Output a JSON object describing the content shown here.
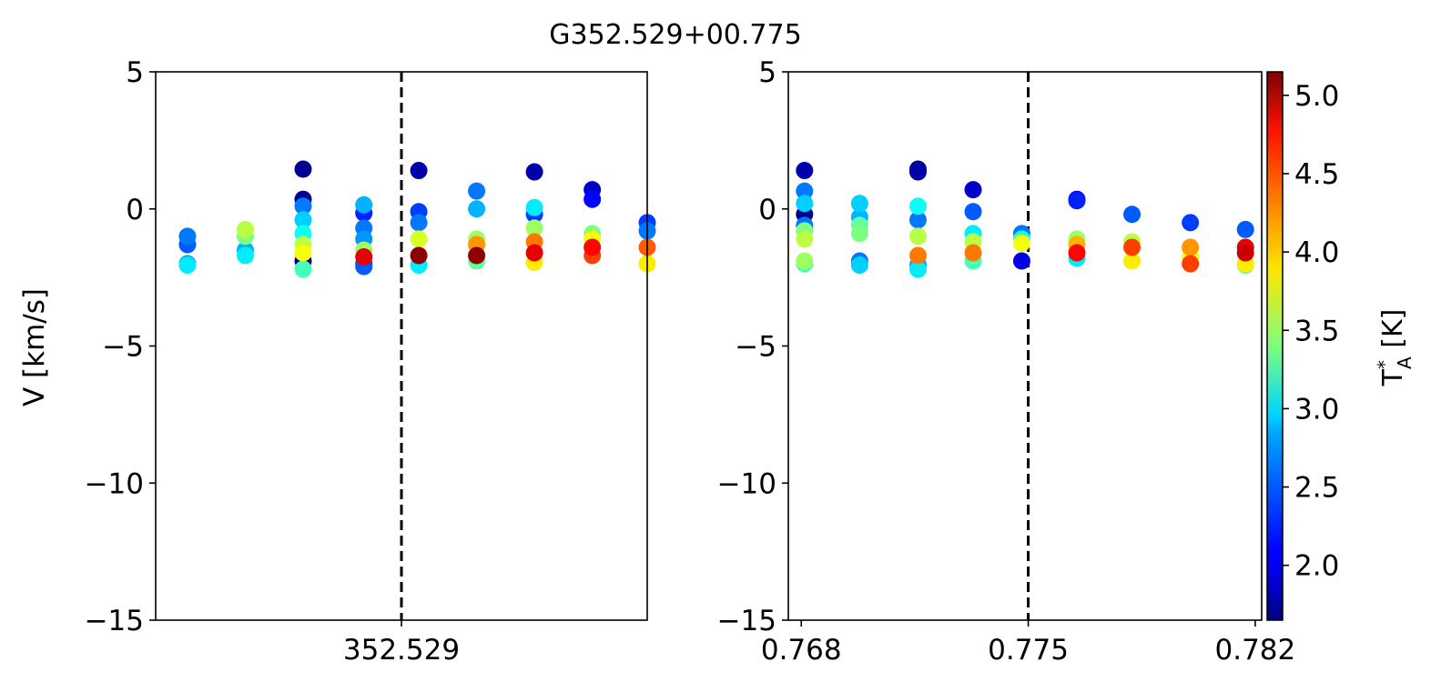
{
  "figure": {
    "title": "G352.529+00.775"
  },
  "chart_data": [
    {
      "type": "scatter",
      "panel": "left",
      "xlabel": "",
      "ylabel": "V [km/s]",
      "xlim": [
        352.5205,
        352.5375
      ],
      "ylim": [
        -15,
        5
      ],
      "xticks": [
        {
          "value": 352.529,
          "label": "352.529"
        }
      ],
      "yticks": [
        {
          "value": 5,
          "label": "5"
        },
        {
          "value": 0,
          "label": "0"
        },
        {
          "value": -5,
          "label": "−5"
        },
        {
          "value": -10,
          "label": "−10"
        },
        {
          "value": -15,
          "label": "−15"
        }
      ],
      "vline": 352.529,
      "color_encodes": "T_A^* [K]",
      "points": [
        {
          "x": 352.5216,
          "y": -1.0,
          "t": 2.5
        },
        {
          "x": 352.5216,
          "y": -1.3,
          "t": 2.4
        },
        {
          "x": 352.5216,
          "y": -2.0,
          "t": 2.6
        },
        {
          "x": 352.5216,
          "y": -2.05,
          "t": 2.9
        },
        {
          "x": 352.5236,
          "y": -0.75,
          "t": 3.6
        },
        {
          "x": 352.5236,
          "y": -1.0,
          "t": 3.4
        },
        {
          "x": 352.5236,
          "y": -1.5,
          "t": 2.7
        },
        {
          "x": 352.5236,
          "y": -1.7,
          "t": 2.9
        },
        {
          "x": 352.5256,
          "y": 1.45,
          "t": 1.7
        },
        {
          "x": 352.5256,
          "y": 0.35,
          "t": 1.7
        },
        {
          "x": 352.5256,
          "y": 0.1,
          "t": 2.5
        },
        {
          "x": 352.5256,
          "y": -0.4,
          "t": 2.8
        },
        {
          "x": 352.5256,
          "y": -0.9,
          "t": 3.0
        },
        {
          "x": 352.5256,
          "y": -1.3,
          "t": 3.6
        },
        {
          "x": 352.5256,
          "y": -1.6,
          "t": 3.8
        },
        {
          "x": 352.5256,
          "y": -1.9,
          "t": 1.7
        },
        {
          "x": 352.5256,
          "y": -2.2,
          "t": 3.2
        },
        {
          "x": 352.5277,
          "y": 0.15,
          "t": 2.7
        },
        {
          "x": 352.5277,
          "y": -0.15,
          "t": 2.2
        },
        {
          "x": 352.5277,
          "y": -0.7,
          "t": 2.5
        },
        {
          "x": 352.5277,
          "y": -1.1,
          "t": 2.6
        },
        {
          "x": 352.5277,
          "y": -1.5,
          "t": 3.5
        },
        {
          "x": 352.5277,
          "y": -1.75,
          "t": 4.8
        },
        {
          "x": 352.5277,
          "y": -2.0,
          "t": 2.2
        },
        {
          "x": 352.5277,
          "y": -2.1,
          "t": 2.4
        },
        {
          "x": 352.5296,
          "y": 1.4,
          "t": 1.8
        },
        {
          "x": 352.5296,
          "y": -0.1,
          "t": 2.3
        },
        {
          "x": 352.5296,
          "y": -0.5,
          "t": 2.5
        },
        {
          "x": 352.5296,
          "y": -1.1,
          "t": 3.7
        },
        {
          "x": 352.5296,
          "y": -1.7,
          "t": 5.1
        },
        {
          "x": 352.5296,
          "y": -2.05,
          "t": 2.9
        },
        {
          "x": 352.5316,
          "y": 0.65,
          "t": 2.5
        },
        {
          "x": 352.5316,
          "y": 0.0,
          "t": 2.7
        },
        {
          "x": 352.5316,
          "y": -1.1,
          "t": 3.5
        },
        {
          "x": 352.5316,
          "y": -1.3,
          "t": 4.2
        },
        {
          "x": 352.5316,
          "y": -1.7,
          "t": 5.1
        },
        {
          "x": 352.5316,
          "y": -1.9,
          "t": 3.3
        },
        {
          "x": 352.5336,
          "y": 1.35,
          "t": 1.8
        },
        {
          "x": 352.5336,
          "y": 0.05,
          "t": 2.9
        },
        {
          "x": 352.5336,
          "y": -0.2,
          "t": 2.3
        },
        {
          "x": 352.5336,
          "y": -0.7,
          "t": 3.5
        },
        {
          "x": 352.5336,
          "y": -1.2,
          "t": 4.3
        },
        {
          "x": 352.5336,
          "y": -1.6,
          "t": 4.8
        },
        {
          "x": 352.5336,
          "y": -1.95,
          "t": 3.9
        },
        {
          "x": 352.5356,
          "y": 0.7,
          "t": 1.9
        },
        {
          "x": 352.5356,
          "y": 0.35,
          "t": 2.1
        },
        {
          "x": 352.5356,
          "y": -0.9,
          "t": 3.4
        },
        {
          "x": 352.5356,
          "y": -1.1,
          "t": 3.8
        },
        {
          "x": 352.5356,
          "y": -1.4,
          "t": 4.7
        },
        {
          "x": 352.5356,
          "y": -1.7,
          "t": 4.5
        },
        {
          "x": 352.5375,
          "y": -0.5,
          "t": 2.3
        },
        {
          "x": 352.5375,
          "y": -0.8,
          "t": 2.5
        },
        {
          "x": 352.5375,
          "y": -1.4,
          "t": 4.4
        },
        {
          "x": 352.5375,
          "y": -2.0,
          "t": 3.9
        }
      ]
    },
    {
      "type": "scatter",
      "panel": "right",
      "xlabel": "",
      "ylabel": "",
      "xlim": [
        0.7676,
        0.7822
      ],
      "ylim": [
        -15,
        5
      ],
      "xticks": [
        {
          "value": 0.768,
          "label": "0.768"
        },
        {
          "value": 0.775,
          "label": "0.775"
        },
        {
          "value": 0.782,
          "label": "0.782"
        }
      ],
      "yticks": [
        {
          "value": 5,
          "label": "5"
        },
        {
          "value": 0,
          "label": "0"
        },
        {
          "value": -5,
          "label": "−5"
        },
        {
          "value": -10,
          "label": "−10"
        },
        {
          "value": -15,
          "label": "−15"
        }
      ],
      "vline": 0.775,
      "color_encodes": "T_A^* [K]",
      "points": [
        {
          "x": 0.7681,
          "y": 1.4,
          "t": 1.8
        },
        {
          "x": 0.7681,
          "y": 0.65,
          "t": 2.5
        },
        {
          "x": 0.7681,
          "y": 0.2,
          "t": 2.8
        },
        {
          "x": 0.7681,
          "y": -0.2,
          "t": 1.7
        },
        {
          "x": 0.7681,
          "y": -0.6,
          "t": 2.5
        },
        {
          "x": 0.7681,
          "y": -0.8,
          "t": 3.4
        },
        {
          "x": 0.7681,
          "y": -1.1,
          "t": 3.6
        },
        {
          "x": 0.7681,
          "y": -1.9,
          "t": 3.5
        },
        {
          "x": 0.7681,
          "y": -2.0,
          "t": 3.2
        },
        {
          "x": 0.7698,
          "y": 0.2,
          "t": 2.8
        },
        {
          "x": 0.7698,
          "y": -0.3,
          "t": 2.7
        },
        {
          "x": 0.7698,
          "y": -0.6,
          "t": 3.3
        },
        {
          "x": 0.7698,
          "y": -0.9,
          "t": 3.4
        },
        {
          "x": 0.7698,
          "y": -1.9,
          "t": 2.5
        },
        {
          "x": 0.7698,
          "y": -2.05,
          "t": 2.8
        },
        {
          "x": 0.7716,
          "y": 1.45,
          "t": 1.7
        },
        {
          "x": 0.7716,
          "y": 1.35,
          "t": 1.8
        },
        {
          "x": 0.7716,
          "y": 0.1,
          "t": 3.0
        },
        {
          "x": 0.7716,
          "y": -0.4,
          "t": 2.5
        },
        {
          "x": 0.7716,
          "y": -1.0,
          "t": 3.6
        },
        {
          "x": 0.7716,
          "y": -1.7,
          "t": 4.3
        },
        {
          "x": 0.7716,
          "y": -2.05,
          "t": 2.6
        },
        {
          "x": 0.7716,
          "y": -2.2,
          "t": 2.9
        },
        {
          "x": 0.7733,
          "y": 0.7,
          "t": 1.9
        },
        {
          "x": 0.7733,
          "y": -0.1,
          "t": 2.4
        },
        {
          "x": 0.7733,
          "y": -0.9,
          "t": 2.9
        },
        {
          "x": 0.7733,
          "y": -1.2,
          "t": 3.6
        },
        {
          "x": 0.7733,
          "y": -1.6,
          "t": 4.3
        },
        {
          "x": 0.7733,
          "y": -1.9,
          "t": 3.2
        },
        {
          "x": 0.7748,
          "y": -0.9,
          "t": 2.5
        },
        {
          "x": 0.7748,
          "y": -1.1,
          "t": 3.0
        },
        {
          "x": 0.7748,
          "y": -1.25,
          "t": 3.8
        },
        {
          "x": 0.7748,
          "y": -1.9,
          "t": 2.0
        },
        {
          "x": 0.7765,
          "y": 0.35,
          "t": 2.1
        },
        {
          "x": 0.7765,
          "y": 0.3,
          "t": 2.2
        },
        {
          "x": 0.7765,
          "y": -1.1,
          "t": 3.5
        },
        {
          "x": 0.7765,
          "y": -1.3,
          "t": 4.1
        },
        {
          "x": 0.7765,
          "y": -1.6,
          "t": 4.7
        },
        {
          "x": 0.7765,
          "y": -1.8,
          "t": 2.9
        },
        {
          "x": 0.7782,
          "y": -0.2,
          "t": 2.4
        },
        {
          "x": 0.7782,
          "y": -1.2,
          "t": 3.6
        },
        {
          "x": 0.7782,
          "y": -1.4,
          "t": 4.5
        },
        {
          "x": 0.7782,
          "y": -1.9,
          "t": 3.9
        },
        {
          "x": 0.78,
          "y": -0.5,
          "t": 2.3
        },
        {
          "x": 0.78,
          "y": -1.4,
          "t": 4.2
        },
        {
          "x": 0.78,
          "y": -1.75,
          "t": 3.8
        },
        {
          "x": 0.78,
          "y": -2.0,
          "t": 4.5
        },
        {
          "x": 0.7817,
          "y": -0.75,
          "t": 2.4
        },
        {
          "x": 0.7817,
          "y": -1.4,
          "t": 4.8
        },
        {
          "x": 0.7817,
          "y": -1.6,
          "t": 4.9
        },
        {
          "x": 0.7817,
          "y": -2.0,
          "t": 3.9
        },
        {
          "x": 0.7817,
          "y": -2.05,
          "t": 3.3
        }
      ]
    }
  ],
  "colorbar": {
    "label_main": "T",
    "label_sup": "*",
    "label_sub": "A",
    "label_unit": " [K]",
    "range": [
      1.65,
      5.15
    ],
    "colormap": "jet",
    "ticks": [
      {
        "value": 2.0,
        "label": "2.0"
      },
      {
        "value": 2.5,
        "label": "2.5"
      },
      {
        "value": 3.0,
        "label": "3.0"
      },
      {
        "value": 3.5,
        "label": "3.5"
      },
      {
        "value": 4.0,
        "label": "4.0"
      },
      {
        "value": 4.5,
        "label": "4.5"
      },
      {
        "value": 5.0,
        "label": "5.0"
      }
    ]
  }
}
